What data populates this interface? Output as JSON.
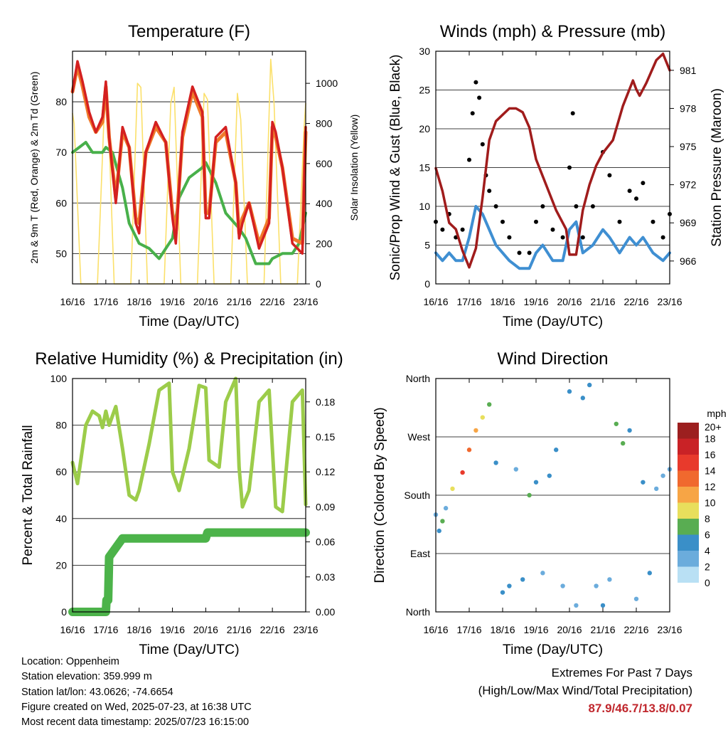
{
  "chart_data": [
    {
      "type": "line",
      "title": "Temperature (F)",
      "xlabel": "Time (Day/UTC)",
      "ylabel": "2m & 9m T (Red, Orange) & 2m Td (Green)",
      "ylabel_right": "Solar Insolation (Yellow)",
      "x_ticks": [
        "16/16",
        "17/16",
        "18/16",
        "19/16",
        "20/16",
        "21/16",
        "22/16",
        "23/16"
      ],
      "ylim": [
        44,
        90
      ],
      "yticks": [
        50,
        60,
        70,
        80
      ],
      "ylim_right": [
        0,
        1160
      ],
      "yticks_right": [
        0,
        200,
        400,
        600,
        800,
        1000
      ],
      "grid": true,
      "series": [
        {
          "name": "2m T",
          "color": "#d42020",
          "axis": "left",
          "x": [
            0,
            0.15,
            0.3,
            0.5,
            0.7,
            0.9,
            1.0,
            1.1,
            1.3,
            1.5,
            1.7,
            1.9,
            2.0,
            2.2,
            2.5,
            2.8,
            3.0,
            3.1,
            3.3,
            3.6,
            3.9,
            4.0,
            4.1,
            4.3,
            4.6,
            4.9,
            5.0,
            5.1,
            5.3,
            5.6,
            5.9,
            6.0,
            6.1,
            6.3,
            6.6,
            6.9,
            7.0
          ],
          "values": [
            82,
            88,
            84,
            78,
            74,
            77,
            84,
            73,
            60,
            75,
            71,
            56,
            54,
            70,
            76,
            72,
            57,
            52,
            74,
            83,
            78,
            57,
            57,
            73,
            75,
            64,
            53,
            56,
            60,
            51,
            56,
            76,
            74,
            67,
            52,
            50,
            75
          ]
        },
        {
          "name": "9m T",
          "color": "#f07a2a",
          "axis": "left",
          "x": [
            0,
            0.15,
            0.3,
            0.5,
            0.7,
            0.9,
            1.0,
            1.1,
            1.3,
            1.5,
            1.7,
            1.9,
            2.0,
            2.2,
            2.5,
            2.8,
            3.0,
            3.1,
            3.3,
            3.6,
            3.9,
            4.0,
            4.1,
            4.3,
            4.6,
            4.9,
            5.0,
            5.1,
            5.3,
            5.6,
            5.9,
            6.0,
            6.1,
            6.3,
            6.6,
            6.9,
            7.0
          ],
          "values": [
            82,
            87,
            83,
            77,
            74,
            76,
            83,
            73,
            61,
            74,
            71,
            57,
            56,
            70,
            75,
            72,
            58,
            54,
            73,
            82,
            77,
            58,
            58,
            72,
            74,
            64,
            54,
            57,
            60,
            52,
            57,
            75,
            73,
            67,
            53,
            52,
            74
          ]
        },
        {
          "name": "2m Td",
          "color": "#48b04a",
          "axis": "left",
          "x": [
            0,
            0.2,
            0.4,
            0.6,
            0.9,
            1.0,
            1.2,
            1.5,
            1.7,
            2.0,
            2.3,
            2.6,
            3.0,
            3.2,
            3.5,
            3.9,
            4.0,
            4.3,
            4.6,
            5.0,
            5.2,
            5.5,
            5.9,
            6.0,
            6.3,
            6.6,
            6.8,
            7.0
          ],
          "values": [
            70,
            71,
            72,
            70,
            70,
            71,
            70,
            63,
            56,
            52,
            51,
            49,
            53,
            61,
            65,
            67,
            68,
            64,
            58,
            55,
            53,
            48,
            48,
            49,
            50,
            50,
            52,
            58
          ]
        },
        {
          "name": "Solar Insolation",
          "color": "#fbe06a",
          "axis": "right",
          "x": [
            0,
            0.05,
            0.25,
            0.5,
            0.75,
            0.95,
            1.05,
            1.25,
            1.5,
            1.75,
            1.95,
            2.05,
            2.25,
            2.5,
            2.75,
            2.95,
            3.05,
            3.25,
            3.5,
            3.75,
            3.95,
            4.05,
            4.25,
            4.5,
            4.75,
            4.95,
            5.05,
            5.25,
            5.5,
            5.75,
            5.95,
            6.05,
            6.25,
            6.5,
            6.75,
            6.95,
            7.0
          ],
          "values": [
            850,
            800,
            0,
            0,
            0,
            850,
            950,
            0,
            0,
            0,
            1000,
            980,
            0,
            0,
            0,
            900,
            980,
            0,
            0,
            0,
            950,
            920,
            0,
            0,
            0,
            950,
            820,
            0,
            0,
            0,
            1120,
            900,
            0,
            0,
            0,
            780,
            900
          ]
        }
      ]
    },
    {
      "type": "scatter",
      "title": "Winds (mph) & Pressure (mb)",
      "xlabel": "Time (Day/UTC)",
      "ylabel": "Sonic/Prop Wind & Gust (Blue, Black)",
      "ylabel_right": "Station Pressure (Maroon)",
      "x_ticks": [
        "16/16",
        "17/16",
        "18/16",
        "19/16",
        "20/16",
        "21/16",
        "22/16",
        "23/16"
      ],
      "ylim": [
        0,
        30
      ],
      "yticks": [
        0,
        5,
        10,
        15,
        20,
        25,
        30
      ],
      "ylim_right": [
        964.2,
        982.5
      ],
      "yticks_right": [
        966,
        969,
        972,
        975,
        978,
        981
      ],
      "grid": true,
      "series": [
        {
          "name": "Gust",
          "color": "#000000",
          "type": "scatter",
          "x": [
            0,
            0.2,
            0.4,
            0.6,
            0.8,
            1.0,
            1.1,
            1.2,
            1.3,
            1.4,
            1.5,
            1.6,
            1.8,
            2.0,
            2.2,
            2.5,
            2.8,
            3.0,
            3.2,
            3.5,
            3.8,
            4.0,
            4.1,
            4.2,
            4.4,
            4.7,
            5.0,
            5.2,
            5.5,
            5.8,
            6.0,
            6.2,
            6.5,
            6.8,
            7.0
          ],
          "values": [
            8,
            7,
            9,
            6,
            7,
            16,
            22,
            26,
            24,
            18,
            14,
            12,
            10,
            8,
            6,
            4,
            4,
            8,
            10,
            7,
            6,
            15,
            22,
            10,
            6,
            10,
            17,
            14,
            8,
            12,
            11,
            13,
            8,
            6,
            9
          ]
        },
        {
          "name": "Wind",
          "color": "#3f8fd2",
          "type": "line",
          "x": [
            0,
            0.2,
            0.4,
            0.6,
            0.8,
            1.0,
            1.2,
            1.4,
            1.6,
            1.8,
            2.0,
            2.2,
            2.5,
            2.8,
            3.0,
            3.2,
            3.5,
            3.8,
            4.0,
            4.2,
            4.4,
            4.7,
            5.0,
            5.2,
            5.5,
            5.8,
            6.0,
            6.2,
            6.5,
            6.8,
            7.0
          ],
          "values": [
            4,
            3,
            4,
            3,
            3,
            6,
            10,
            9,
            7,
            5,
            4,
            3,
            2,
            2,
            4,
            5,
            3,
            3,
            7,
            8,
            4,
            5,
            7,
            6,
            4,
            6,
            5,
            6,
            4,
            3,
            4
          ]
        },
        {
          "name": "Pressure",
          "color": "#a01c1c",
          "type": "line",
          "axis": "right",
          "x": [
            0,
            0.2,
            0.4,
            0.6,
            0.8,
            1.0,
            1.2,
            1.4,
            1.6,
            1.8,
            2.0,
            2.2,
            2.4,
            2.6,
            2.8,
            3.0,
            3.3,
            3.6,
            3.9,
            4.0,
            4.2,
            4.4,
            4.6,
            4.8,
            5.0,
            5.3,
            5.6,
            5.9,
            6.0,
            6.1,
            6.3,
            6.6,
            6.8,
            7.0
          ],
          "values": [
            973.3,
            971.5,
            969,
            968.5,
            966.8,
            965.5,
            967,
            971,
            975.5,
            977,
            977.5,
            978,
            978,
            977.7,
            976.5,
            974,
            972,
            970,
            968.5,
            966.5,
            966.5,
            970,
            972,
            973.5,
            974.5,
            975.5,
            978.2,
            980.2,
            979.5,
            979,
            980,
            981.8,
            982.3,
            981
          ]
        }
      ]
    },
    {
      "type": "line",
      "title": "Relative Humidity (%) & Precipitation (in)",
      "xlabel": "Time (Day/UTC)",
      "ylabel": "Percent & Total Rainfall",
      "x_ticks": [
        "16/16",
        "17/16",
        "18/16",
        "19/16",
        "20/16",
        "21/16",
        "22/16",
        "23/16"
      ],
      "ylim": [
        0,
        100
      ],
      "yticks": [
        0,
        20,
        40,
        60,
        80,
        100
      ],
      "ylim_right": [
        0,
        0.2
      ],
      "yticks_right": [
        "0.00",
        "0.03",
        "0.06",
        "0.09",
        "0.12",
        "0.15",
        "0.18"
      ],
      "grid": true,
      "series": [
        {
          "name": "Relative Humidity",
          "color": "#9ccc4a",
          "axis": "left",
          "x": [
            0,
            0.15,
            0.4,
            0.6,
            0.8,
            0.9,
            1.0,
            1.1,
            1.3,
            1.5,
            1.7,
            1.9,
            2.0,
            2.3,
            2.6,
            2.9,
            3.0,
            3.2,
            3.5,
            3.8,
            4.0,
            4.1,
            4.4,
            4.6,
            4.9,
            5.0,
            5.1,
            5.3,
            5.6,
            5.9,
            6.0,
            6.1,
            6.3,
            6.6,
            6.9,
            7.0
          ],
          "values": [
            64,
            55,
            80,
            86,
            84,
            79,
            86,
            80,
            88,
            70,
            50,
            48,
            52,
            72,
            95,
            98,
            60,
            52,
            70,
            97,
            96,
            65,
            62,
            90,
            100,
            62,
            45,
            52,
            90,
            95,
            70,
            45,
            43,
            90,
            95,
            46
          ]
        },
        {
          "name": "Total Precipitation",
          "color": "#4cb34a",
          "axis": "right",
          "x": [
            0,
            0.5,
            1.0,
            1.02,
            1.07,
            1.1,
            1.5,
            2.0,
            3.0,
            4.0,
            4.05,
            5.0,
            6.0,
            7.0
          ],
          "values": [
            0,
            0,
            0,
            0.01,
            0.01,
            0.047,
            0.063,
            0.063,
            0.063,
            0.063,
            0.068,
            0.068,
            0.068,
            0.068
          ]
        }
      ]
    },
    {
      "type": "scatter",
      "title": "Wind Direction",
      "xlabel": "Time (Day/UTC)",
      "ylabel": "Direction (Colored By Speed)",
      "x_ticks": [
        "16/16",
        "17/16",
        "18/16",
        "19/16",
        "20/16",
        "21/16",
        "22/16",
        "23/16"
      ],
      "ylim": [
        0,
        360
      ],
      "yticks": [
        "North",
        "East",
        "South",
        "West",
        "North"
      ],
      "grid": true,
      "colorbar": {
        "title": "mph",
        "labels": [
          "20+",
          "18",
          "16",
          "14",
          "12",
          "10",
          "8",
          "6",
          "4",
          "2",
          "0"
        ],
        "colors": [
          "#9c1f1f",
          "#c92226",
          "#e83a2c",
          "#f0692e",
          "#f7a545",
          "#e8df5c",
          "#59ad52",
          "#3a8fc8",
          "#6bacdc",
          "#b9e0f4"
        ]
      },
      "x": [
        0,
        0.1,
        0.2,
        0.3,
        0.5,
        0.8,
        1.0,
        1.2,
        1.4,
        1.6,
        1.8,
        2.0,
        2.2,
        2.4,
        2.6,
        2.8,
        3.0,
        3.2,
        3.4,
        3.6,
        3.8,
        4.0,
        4.2,
        4.4,
        4.6,
        4.8,
        5.0,
        5.2,
        5.4,
        5.6,
        5.8,
        6.0,
        6.2,
        6.4,
        6.6,
        6.8,
        7.0
      ],
      "y": [
        150,
        125,
        140,
        160,
        190,
        215,
        250,
        280,
        300,
        320,
        230,
        30,
        40,
        220,
        50,
        180,
        200,
        60,
        210,
        250,
        40,
        340,
        10,
        330,
        350,
        40,
        10,
        50,
        290,
        260,
        280,
        20,
        200,
        60,
        190,
        210,
        220
      ],
      "speed": [
        3,
        4,
        6,
        3,
        8,
        14,
        12,
        10,
        8,
        6,
        4,
        4,
        4,
        3,
        5,
        6,
        5,
        3,
        4,
        5,
        2,
        4,
        3,
        5,
        4,
        3,
        4,
        3,
        6,
        7,
        5,
        3,
        4,
        4,
        3,
        3,
        3
      ]
    }
  ],
  "info": {
    "location": "Location: Oppenheim",
    "elevation": "Station elevation: 359.999 m",
    "latlon": "Station lat/lon: 43.0626; -74.6654",
    "created": "Figure created on Wed, 2025-07-23, at 16:38 UTC",
    "recent": "Most recent data timestamp: 2025/07/23 16:15:00"
  },
  "extremes": {
    "title": "Extremes For Past 7 Days",
    "subtitle": "(High/Low/Max Wind/Total Precipitation)",
    "values": "87.9/46.7/13.8/0.07"
  }
}
